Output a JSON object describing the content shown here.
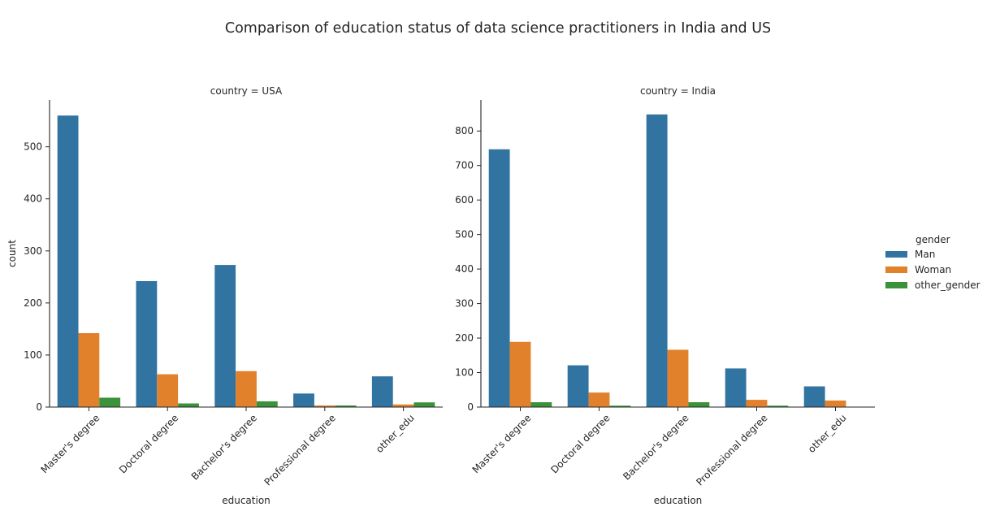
{
  "chart_data": {
    "type": "bar",
    "title": "Comparison of education status of data science practitioners in India and US",
    "legend": {
      "title": "gender",
      "position": "right",
      "entries": [
        {
          "name": "Man",
          "color": "#3274a1"
        },
        {
          "name": "Woman",
          "color": "#e1812c"
        },
        {
          "name": "other_gender",
          "color": "#3a923a"
        }
      ]
    },
    "panels": [
      {
        "title": "country = USA",
        "xlabel": "education",
        "ylabel": "count",
        "ylim": [
          0,
          590
        ],
        "yticks": [
          0,
          100,
          200,
          300,
          400,
          500
        ],
        "categories": [
          "Master's degree",
          "Doctoral degree",
          "Bachelor's degree",
          "Professional degree",
          "other_edu"
        ],
        "series": [
          {
            "name": "Man",
            "values": [
              560,
              242,
              273,
              26,
              59
            ]
          },
          {
            "name": "Woman",
            "values": [
              142,
              63,
              69,
              3,
              5
            ]
          },
          {
            "name": "other_gender",
            "values": [
              18,
              7,
              11,
              3,
              9
            ]
          }
        ]
      },
      {
        "title": "country = India",
        "xlabel": "education",
        "ylabel": "",
        "ylim": [
          0,
          890
        ],
        "yticks": [
          0,
          100,
          200,
          300,
          400,
          500,
          600,
          700,
          800
        ],
        "categories": [
          "Master's degree",
          "Doctoral degree",
          "Bachelor's degree",
          "Professional degree",
          "other_edu"
        ],
        "series": [
          {
            "name": "Man",
            "values": [
              747,
              121,
              848,
              112,
              60
            ]
          },
          {
            "name": "Woman",
            "values": [
              189,
              42,
              166,
              21,
              19
            ]
          },
          {
            "name": "other_gender",
            "values": [
              14,
              4,
              14,
              4,
              1
            ]
          }
        ]
      }
    ]
  }
}
